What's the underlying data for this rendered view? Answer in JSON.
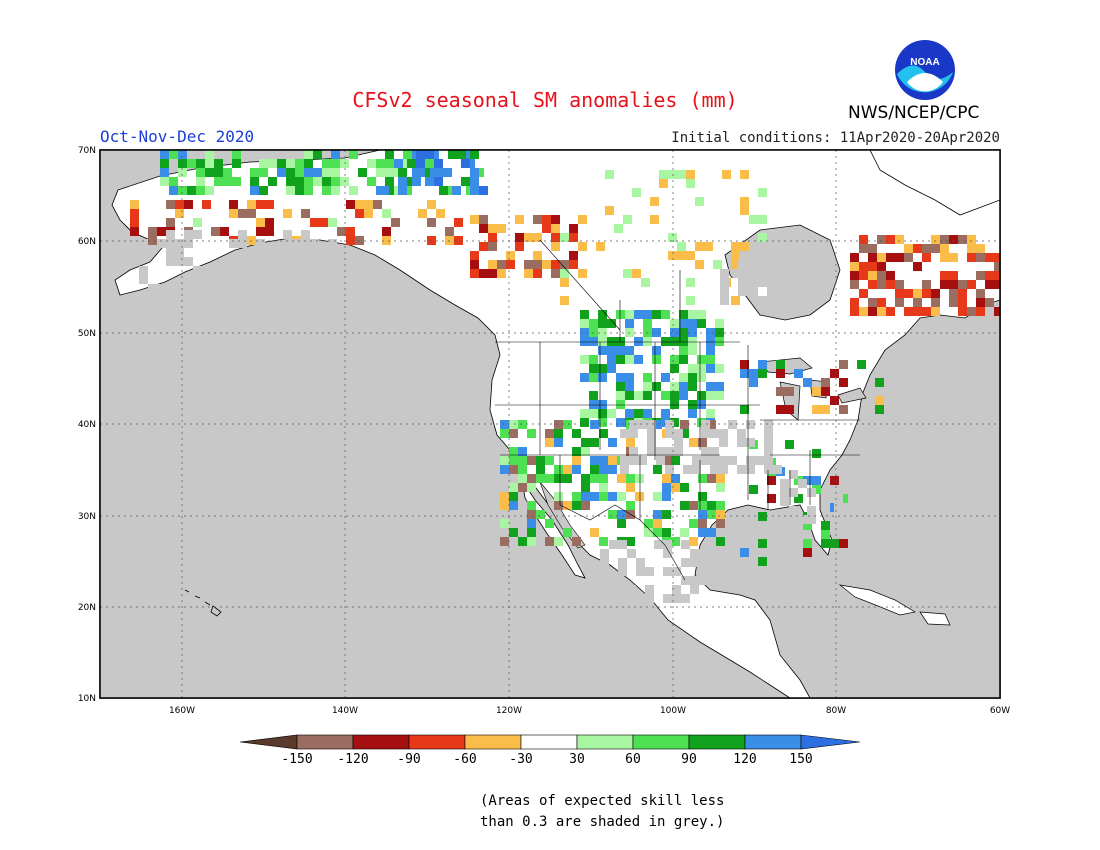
{
  "header": {
    "title": "CFSv2 seasonal SM anomalies (mm)",
    "period": "Oct-Nov-Dec 2020",
    "initial_conditions": "Initial conditions: 11Apr2020-20Apr2020",
    "agency": "NWS/NCEP/CPC",
    "logo_text": "NOAA"
  },
  "map": {
    "lat_labels": [
      "70N",
      "60N",
      "50N",
      "40N",
      "30N",
      "20N",
      "10N"
    ],
    "lon_labels": [
      "160W",
      "140W",
      "120W",
      "100W",
      "80W",
      "60W"
    ],
    "ocean_color": "#c8c8c8",
    "grid": true
  },
  "colorbar": {
    "labels": [
      "-150",
      "-120",
      "-90",
      "-60",
      "-30",
      "30",
      "60",
      "90",
      "120",
      "150"
    ],
    "colors": [
      "#5a3a2c",
      "#9b6d60",
      "#a60f0f",
      "#e8381a",
      "#fbbd4a",
      "#ffffff",
      "#a8f5a2",
      "#4de053",
      "#10a21c",
      "#3a8ee8",
      "#2c6fe0"
    ]
  },
  "footnote": {
    "line1": "(Areas of expected skill less",
    "line2": "than 0.3 are shaded in grey.)"
  }
}
